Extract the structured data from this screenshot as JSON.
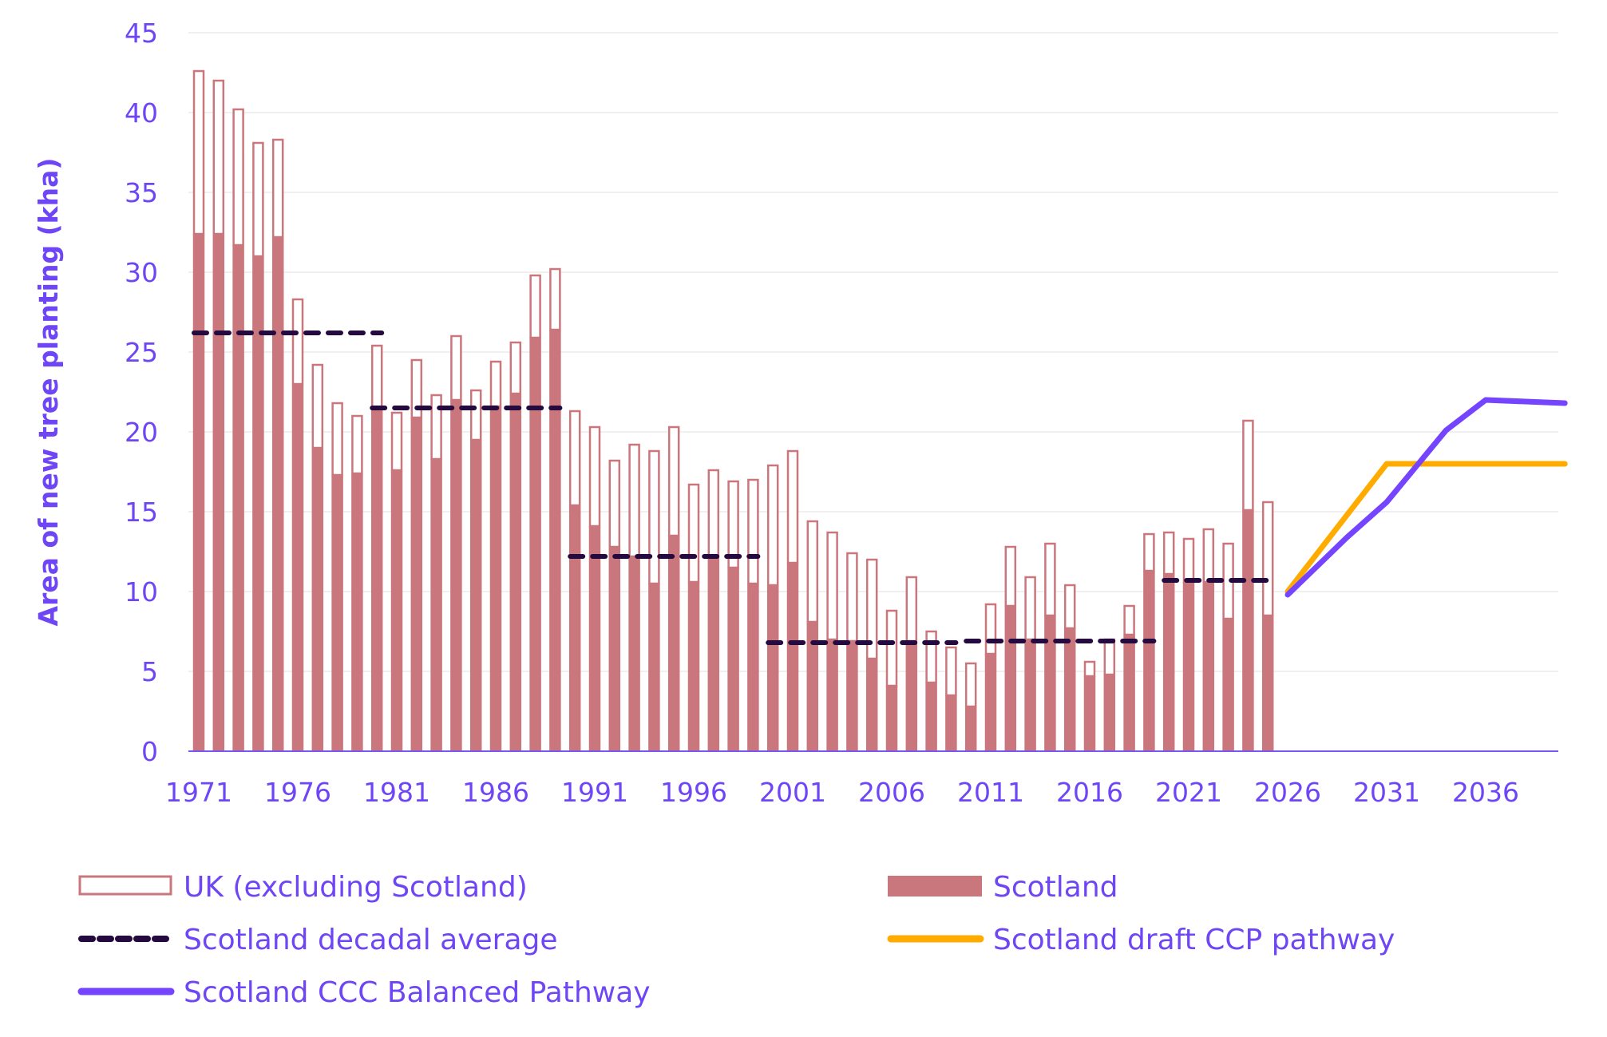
{
  "chart_data": {
    "type": "bar",
    "title": "",
    "xlabel": "",
    "ylabel": "Area of new tree planting (kha)",
    "ylim": [
      0,
      45
    ],
    "yticks": [
      0,
      5,
      10,
      15,
      20,
      25,
      30,
      35,
      40,
      45
    ],
    "xlim": [
      1971,
      2040
    ],
    "xticks": [
      "1971",
      "1976",
      "1981",
      "1986",
      "1991",
      "1996",
      "2001",
      "2006",
      "2011",
      "2016",
      "2021",
      "2026",
      "2031",
      "2036"
    ],
    "grid": true,
    "legend_position": "bottom",
    "colors": {
      "uk_excl_scotland": "#c9777d",
      "scotland": "#c9777d",
      "decadal_average": "#250a40",
      "draft_ccp": "#ffab00",
      "ccc_balanced": "#7444ff",
      "text": "#6e46f5",
      "axis": "#7a55f0",
      "grid": "#ececec"
    },
    "categories": [
      1971,
      1972,
      1973,
      1974,
      1975,
      1976,
      1977,
      1978,
      1979,
      1980,
      1981,
      1982,
      1983,
      1984,
      1985,
      1986,
      1987,
      1988,
      1989,
      1990,
      1991,
      1992,
      1993,
      1994,
      1995,
      1996,
      1997,
      1998,
      1999,
      2000,
      2001,
      2002,
      2003,
      2004,
      2005,
      2006,
      2007,
      2008,
      2009,
      2010,
      2011,
      2012,
      2013,
      2014,
      2015,
      2016,
      2017,
      2018,
      2019,
      2020,
      2021,
      2022,
      2023,
      2024,
      2025
    ],
    "series": [
      {
        "name": "Scotland",
        "kind": "bar-filled",
        "values": [
          32.4,
          32.4,
          31.7,
          31.0,
          32.2,
          23.0,
          19.0,
          17.3,
          17.4,
          21.4,
          17.6,
          20.9,
          18.3,
          22.0,
          19.5,
          21.6,
          22.4,
          25.9,
          26.4,
          15.4,
          14.1,
          12.8,
          12.2,
          10.5,
          13.5,
          10.6,
          12.0,
          11.5,
          10.5,
          10.4,
          11.8,
          8.1,
          7.0,
          6.9,
          5.8,
          4.1,
          6.9,
          4.3,
          3.5,
          2.8,
          6.1,
          9.1,
          7.0,
          8.5,
          7.7,
          4.7,
          4.8,
          7.3,
          11.3,
          11.1,
          10.6,
          10.6,
          8.3,
          15.1,
          8.5
        ]
      },
      {
        "name": "UK (excluding Scotland)",
        "kind": "bar-outline-stacked",
        "values": [
          10.2,
          9.6,
          8.5,
          7.1,
          6.1,
          5.3,
          5.2,
          4.5,
          3.6,
          4.0,
          3.6,
          3.6,
          4.0,
          4.0,
          3.1,
          2.8,
          3.2,
          3.9,
          3.8,
          5.9,
          6.2,
          5.4,
          7.0,
          8.3,
          6.8,
          6.1,
          5.6,
          5.4,
          6.5,
          7.5,
          7.0,
          6.3,
          6.7,
          5.5,
          6.2,
          4.7,
          4.0,
          3.2,
          3.0,
          2.7,
          3.1,
          3.7,
          3.9,
          4.5,
          2.7,
          0.9,
          2.2,
          1.8,
          2.3,
          2.6,
          2.7,
          3.3,
          4.7,
          5.6,
          7.1
        ]
      }
    ],
    "decadal_average": {
      "name": "Scotland decadal average",
      "segments": [
        {
          "start": 1971,
          "end": 1980,
          "value": 26.2
        },
        {
          "start": 1980,
          "end": 1989,
          "value": 21.5
        },
        {
          "start": 1990,
          "end": 1999,
          "value": 12.2
        },
        {
          "start": 2000,
          "end": 2009,
          "value": 6.8
        },
        {
          "start": 2010,
          "end": 2019,
          "value": 6.9
        },
        {
          "start": 2020,
          "end": 2025,
          "value": 10.7
        }
      ]
    },
    "lines": [
      {
        "name": "Scotland draft CCP pathway",
        "x": [
          2026,
          2031,
          2040
        ],
        "y": [
          10.0,
          18.0,
          18.0
        ]
      },
      {
        "name": "Scotland CCC Balanced Pathway",
        "x": [
          2026,
          2029,
          2031,
          2034,
          2036,
          2040
        ],
        "y": [
          9.8,
          13.4,
          15.6,
          20.1,
          22.0,
          21.8
        ]
      }
    ]
  },
  "legend": [
    {
      "key": "uk_excl_scotland",
      "label": "UK (excluding Scotland)",
      "swatch": "outline-box"
    },
    {
      "key": "scotland",
      "label": "Scotland",
      "swatch": "filled-box"
    },
    {
      "key": "decadal_average",
      "label": "Scotland decadal average",
      "swatch": "dashed-line"
    },
    {
      "key": "draft_ccp",
      "label": "Scotland draft CCP pathway",
      "swatch": "solid-line"
    },
    {
      "key": "ccc_balanced",
      "label": "Scotland CCC Balanced Pathway",
      "swatch": "solid-line"
    }
  ]
}
